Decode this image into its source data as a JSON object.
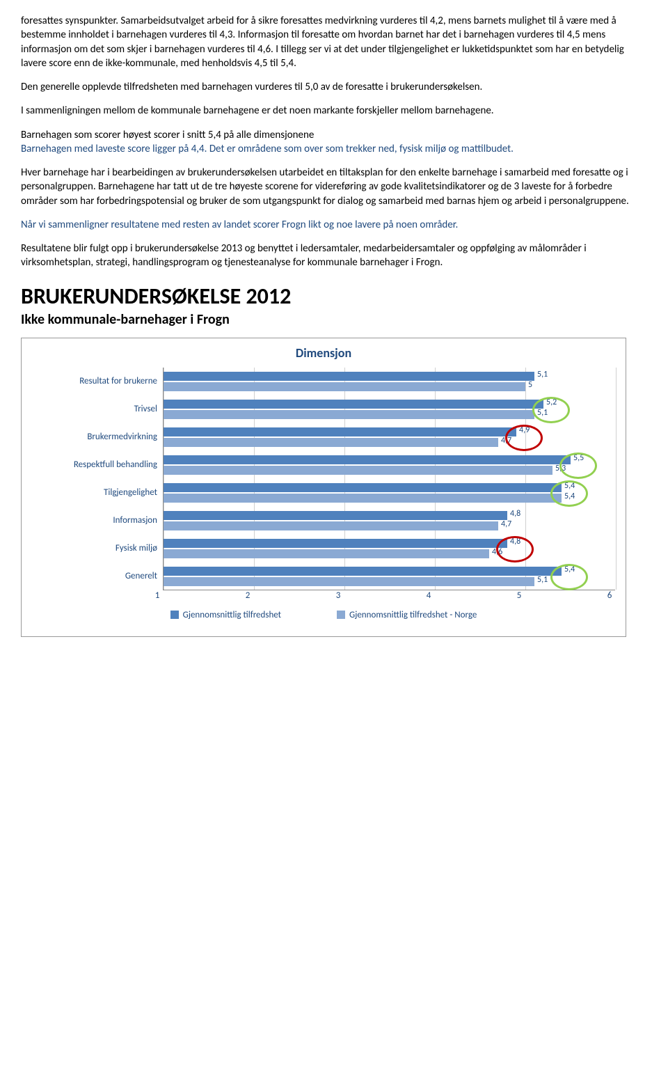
{
  "paragraphs": {
    "p1": "foresattes synspunkter. Samarbeidsutvalget arbeid for å sikre foresattes medvirkning vurderes til 4,2, mens barnets mulighet til å være med å bestemme innholdet i barnehagen vurderes til 4,3. Informasjon til foresatte om hvordan barnet har det i barnehagen vurderes til 4,5 mens informasjon om det som skjer i barnehagen vurderes til 4,6. I tillegg ser vi at det under tilgjengelighet er lukketidspunktet som har en betydelig lavere score enn de ikke-kommunale, med henholdsvis 4,5 til 5,4.",
    "p2": "Den generelle opplevde tilfredsheten med barnehagen vurderes til 5,0 av de foresatte i brukerundersøkelsen.",
    "p3": "I sammenligningen mellom de kommunale barnehagene er det noen markante forskjeller mellom barnehagene.",
    "p4": "Barnehagen som scorer høyest scorer i snitt 5,4 på alle dimensjonene",
    "p5": "Barnehagen med laveste score ligger på 4,4.  Det er områdene som over som trekker ned, fysisk miljø og mattilbudet.",
    "p6": "Hver barnehage har i bearbeidingen av brukerundersøkelsen utarbeidet en tiltaksplan for den enkelte barnehage i samarbeid med foresatte og i personalgruppen. Barnehagene har tatt ut de tre høyeste scorene for videreføring av gode kvalitetsindikatorer og de 3 laveste for å forbedre områder som har forbedringspotensial og bruker de som utgangspunkt for dialog og samarbeid med barnas hjem og arbeid i personalgruppene.",
    "p7": "Når vi sammenligner resultatene med resten av landet scorer Frogn likt og noe lavere på noen områder.",
    "p8": "Resultatene blir fulgt opp i brukerundersøkelse 2013 og benyttet i ledersamtaler, medarbeidersamtaler og oppfølging av målområder i virksomhetsplan, strategi, handlingsprogram og tjenesteanalyse for kommunale barnehager i Frogn."
  },
  "heading1": "BRUKERUNDERSØKELSE 2012",
  "heading2": "Ikke kommunale-barnehager i Frogn",
  "chart": {
    "title": "Dimensjon",
    "categories": [
      "Resultat for brukerne",
      "Trivsel",
      "Brukermedvirkning",
      "Respektfull behandling",
      "Tilgjengelighet",
      "Informasjon",
      "Fysisk miljø",
      "Generelt"
    ],
    "series1_values": [
      5.1,
      5.2,
      4.9,
      5.5,
      5.4,
      4.8,
      4.8,
      5.4
    ],
    "series2_values": [
      5.0,
      5.1,
      4.7,
      5.3,
      5.4,
      4.7,
      4.6,
      5.1
    ],
    "series1_labels": [
      "5,1",
      "5,2",
      "4,9",
      "5,5",
      "5,4",
      "4,8",
      "4,8",
      "5,4"
    ],
    "series2_labels": [
      "5",
      "5,1",
      "4,7",
      "5,3",
      "5,4",
      "4,7",
      "4,6",
      "5,1"
    ],
    "xmin": 1,
    "xmax": 6,
    "xticks": [
      1,
      2,
      3,
      4,
      5,
      6
    ],
    "xtick_labels": [
      "1",
      "2",
      "3",
      "4",
      "5",
      "6"
    ],
    "series1_color": "#4f81bd",
    "series2_color": "#8aa9d3",
    "legend1": "Gjennomsnittlig tilfredshet",
    "legend2": "Gjennomsnittlig tilfredshet - Norge",
    "green_circle_color": "#92d050",
    "red_circle_color": "#c00000",
    "annotations": [
      {
        "type": "green",
        "row": 1
      },
      {
        "type": "red",
        "row": 2
      },
      {
        "type": "green",
        "row": 3
      },
      {
        "type": "green",
        "row": 4
      },
      {
        "type": "red",
        "row": 6
      },
      {
        "type": "green",
        "row": 7
      }
    ]
  }
}
